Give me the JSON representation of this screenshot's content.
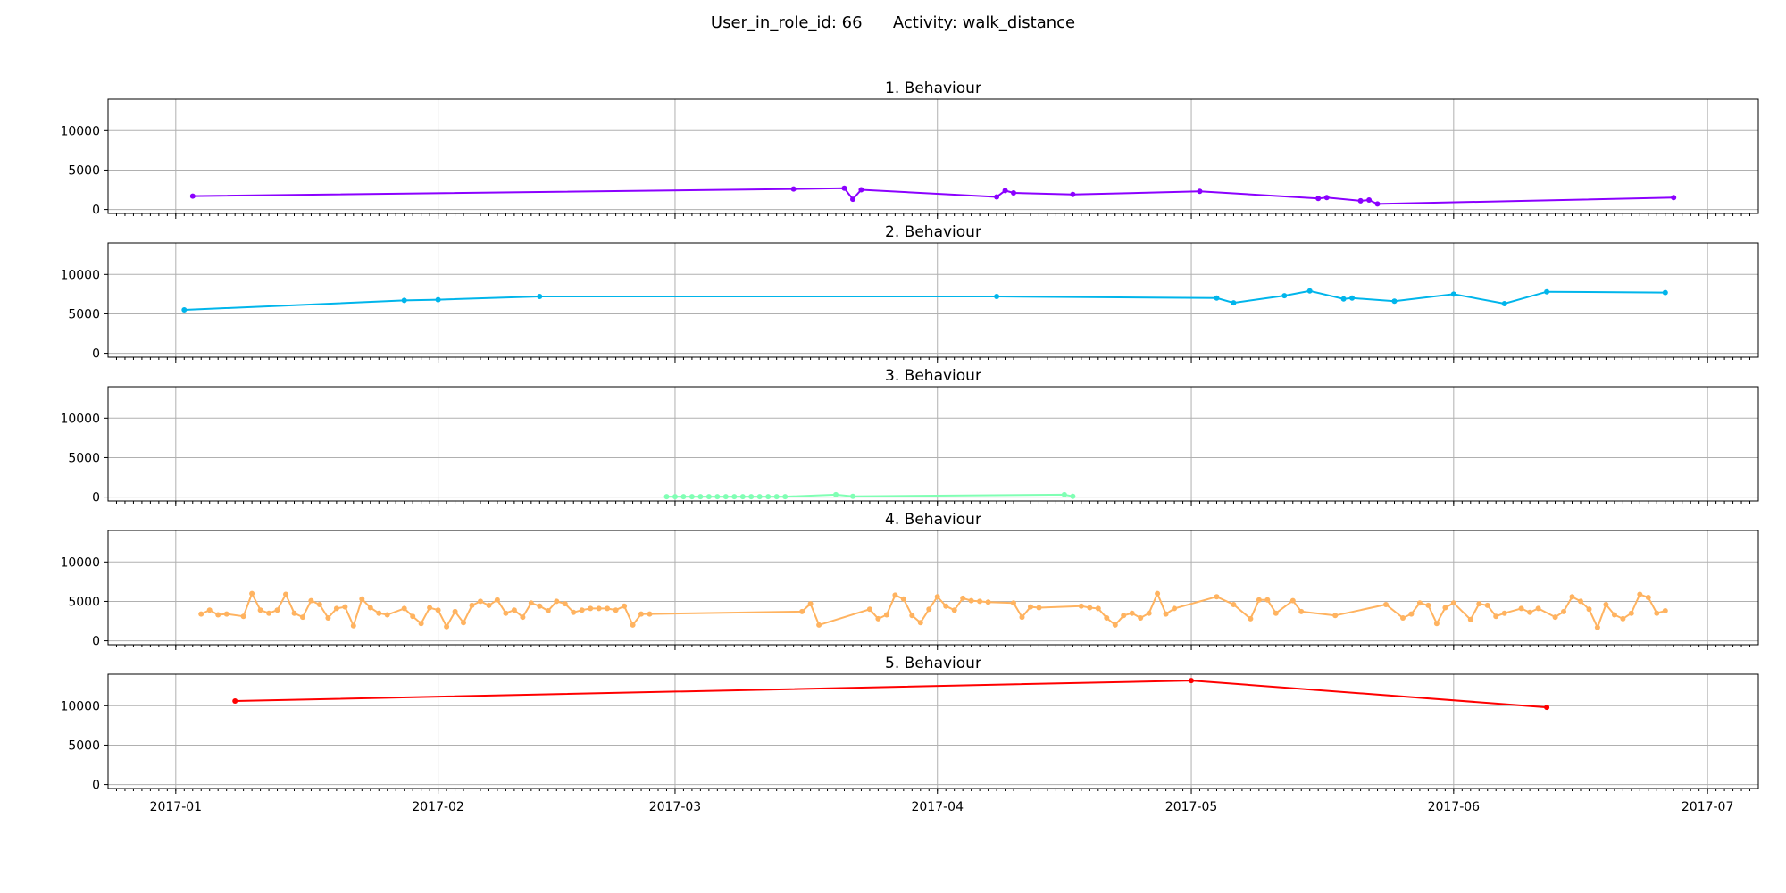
{
  "figure": {
    "suptitle": "User_in_role_id: 66      Activity: walk_distance"
  },
  "chart_data": {
    "type": "line",
    "x_axis": {
      "kind": "date",
      "range": [
        "2016-12-24",
        "2017-07-07"
      ],
      "ticks": [
        "2017-01-01",
        "2017-02-01",
        "2017-03-01",
        "2017-04-01",
        "2017-05-01",
        "2017-06-01",
        "2017-07-01"
      ],
      "tick_labels": [
        "2017-01",
        "2017-02",
        "2017-03",
        "2017-04",
        "2017-05",
        "2017-06",
        "2017-07"
      ]
    },
    "y_axis": {
      "ylim": [
        -500,
        14000
      ],
      "ticks": [
        0,
        5000,
        10000
      ],
      "tick_labels": [
        "0",
        "5000",
        "10000"
      ]
    },
    "grid": true,
    "panels": [
      {
        "title": "1. Behaviour",
        "color": "#8b00ff",
        "x": [
          "2017-01-03",
          "2017-03-15",
          "2017-03-21",
          "2017-03-22",
          "2017-03-23",
          "2017-04-08",
          "2017-04-09",
          "2017-04-10",
          "2017-04-17",
          "2017-05-02",
          "2017-05-16",
          "2017-05-17",
          "2017-05-21",
          "2017-05-22",
          "2017-05-23",
          "2017-06-27"
        ],
        "y": [
          1700,
          2600,
          2700,
          1300,
          2500,
          1600,
          2400,
          2100,
          1900,
          2300,
          1400,
          1500,
          1100,
          1200,
          700,
          1500
        ]
      },
      {
        "title": "2. Behaviour",
        "color": "#00b5eb",
        "x": [
          "2017-01-02",
          "2017-01-28",
          "2017-02-01",
          "2017-02-13",
          "2017-04-08",
          "2017-05-04",
          "2017-05-06",
          "2017-05-12",
          "2017-05-15",
          "2017-05-19",
          "2017-05-20",
          "2017-05-25",
          "2017-06-01",
          "2017-06-07",
          "2017-06-12",
          "2017-06-26"
        ],
        "y": [
          5500,
          6700,
          6800,
          7200,
          7200,
          7000,
          6400,
          7300,
          7900,
          6900,
          7000,
          6600,
          7500,
          6300,
          7800,
          7700
        ]
      },
      {
        "title": "3. Behaviour",
        "color": "#80ffb4",
        "x": [
          "2017-02-28",
          "2017-03-01",
          "2017-03-02",
          "2017-03-03",
          "2017-03-04",
          "2017-03-05",
          "2017-03-06",
          "2017-03-07",
          "2017-03-08",
          "2017-03-09",
          "2017-03-10",
          "2017-03-11",
          "2017-03-12",
          "2017-03-13",
          "2017-03-14",
          "2017-03-20",
          "2017-03-22",
          "2017-04-16",
          "2017-04-17"
        ],
        "y": [
          50,
          50,
          50,
          50,
          50,
          50,
          50,
          50,
          50,
          50,
          50,
          50,
          50,
          50,
          50,
          300,
          100,
          300,
          100
        ]
      },
      {
        "title": "4. Behaviour",
        "color": "#ffb360",
        "x": [
          "2017-01-04",
          "2017-01-05",
          "2017-01-06",
          "2017-01-07",
          "2017-01-09",
          "2017-01-10",
          "2017-01-11",
          "2017-01-12",
          "2017-01-13",
          "2017-01-14",
          "2017-01-15",
          "2017-01-16",
          "2017-01-17",
          "2017-01-18",
          "2017-01-19",
          "2017-01-20",
          "2017-01-21",
          "2017-01-22",
          "2017-01-23",
          "2017-01-24",
          "2017-01-25",
          "2017-01-26",
          "2017-01-28",
          "2017-01-29",
          "2017-01-30",
          "2017-01-31",
          "2017-02-01",
          "2017-02-02",
          "2017-02-03",
          "2017-02-04",
          "2017-02-05",
          "2017-02-06",
          "2017-02-07",
          "2017-02-08",
          "2017-02-09",
          "2017-02-10",
          "2017-02-11",
          "2017-02-12",
          "2017-02-13",
          "2017-02-14",
          "2017-02-15",
          "2017-02-16",
          "2017-02-17",
          "2017-02-18",
          "2017-02-19",
          "2017-02-20",
          "2017-02-21",
          "2017-02-22",
          "2017-02-23",
          "2017-02-24",
          "2017-02-25",
          "2017-02-26",
          "2017-03-16",
          "2017-03-17",
          "2017-03-18",
          "2017-03-24",
          "2017-03-25",
          "2017-03-26",
          "2017-03-27",
          "2017-03-28",
          "2017-03-29",
          "2017-03-30",
          "2017-03-31",
          "2017-04-01",
          "2017-04-02",
          "2017-04-03",
          "2017-04-04",
          "2017-04-05",
          "2017-04-06",
          "2017-04-07",
          "2017-04-10",
          "2017-04-11",
          "2017-04-12",
          "2017-04-13",
          "2017-04-18",
          "2017-04-19",
          "2017-04-20",
          "2017-04-21",
          "2017-04-22",
          "2017-04-23",
          "2017-04-24",
          "2017-04-25",
          "2017-04-26",
          "2017-04-27",
          "2017-04-28",
          "2017-04-29",
          "2017-05-04",
          "2017-05-06",
          "2017-05-08",
          "2017-05-09",
          "2017-05-10",
          "2017-05-11",
          "2017-05-13",
          "2017-05-14",
          "2017-05-18",
          "2017-05-24",
          "2017-05-26",
          "2017-05-27",
          "2017-05-28",
          "2017-05-29",
          "2017-05-30",
          "2017-05-31",
          "2017-06-01",
          "2017-06-03",
          "2017-06-04",
          "2017-06-05",
          "2017-06-06",
          "2017-06-07",
          "2017-06-09",
          "2017-06-10",
          "2017-06-11",
          "2017-06-13",
          "2017-06-14",
          "2017-06-15",
          "2017-06-16",
          "2017-06-17",
          "2017-06-18",
          "2017-06-19",
          "2017-06-20",
          "2017-06-21",
          "2017-06-22",
          "2017-06-23",
          "2017-06-24",
          "2017-06-25",
          "2017-06-26"
        ],
        "y": [
          3400,
          3900,
          3300,
          3400,
          3100,
          6000,
          3900,
          3500,
          3900,
          5900,
          3500,
          3000,
          5100,
          4600,
          2900,
          4100,
          4300,
          1900,
          5300,
          4200,
          3500,
          3300,
          4100,
          3100,
          2200,
          4200,
          3900,
          1800,
          3700,
          2300,
          4500,
          5000,
          4500,
          5200,
          3500,
          3900,
          3000,
          4800,
          4400,
          3800,
          5000,
          4700,
          3600,
          3900,
          4100,
          4100,
          4100,
          3900,
          4400,
          2000,
          3400,
          3400,
          3700,
          4700,
          2000,
          4000,
          2800,
          3300,
          5800,
          5300,
          3200,
          2300,
          4000,
          5600,
          4400,
          3900,
          5400,
          5100,
          5000,
          4900,
          4800,
          3000,
          4300,
          4200,
          4400,
          4200,
          4100,
          2900,
          2000,
          3200,
          3500,
          2900,
          3500,
          6000,
          3400,
          4100,
          5600,
          4600,
          2800,
          5200,
          5200,
          3500,
          5100,
          3700,
          3200,
          4600,
          2900,
          3400,
          4800,
          4500,
          2200,
          4200,
          4800,
          2700,
          4700,
          4500,
          3100,
          3500,
          4100,
          3600,
          4100,
          3000,
          3700,
          5600,
          5000,
          4000,
          1700,
          4600,
          3300,
          2800,
          3500,
          5900,
          5500,
          3500,
          3800
        ]
      },
      {
        "title": "5. Behaviour",
        "color": "#ff0000",
        "x": [
          "2017-01-08",
          "2017-05-01",
          "2017-06-12"
        ],
        "y": [
          10600,
          13200,
          9800
        ]
      }
    ]
  }
}
